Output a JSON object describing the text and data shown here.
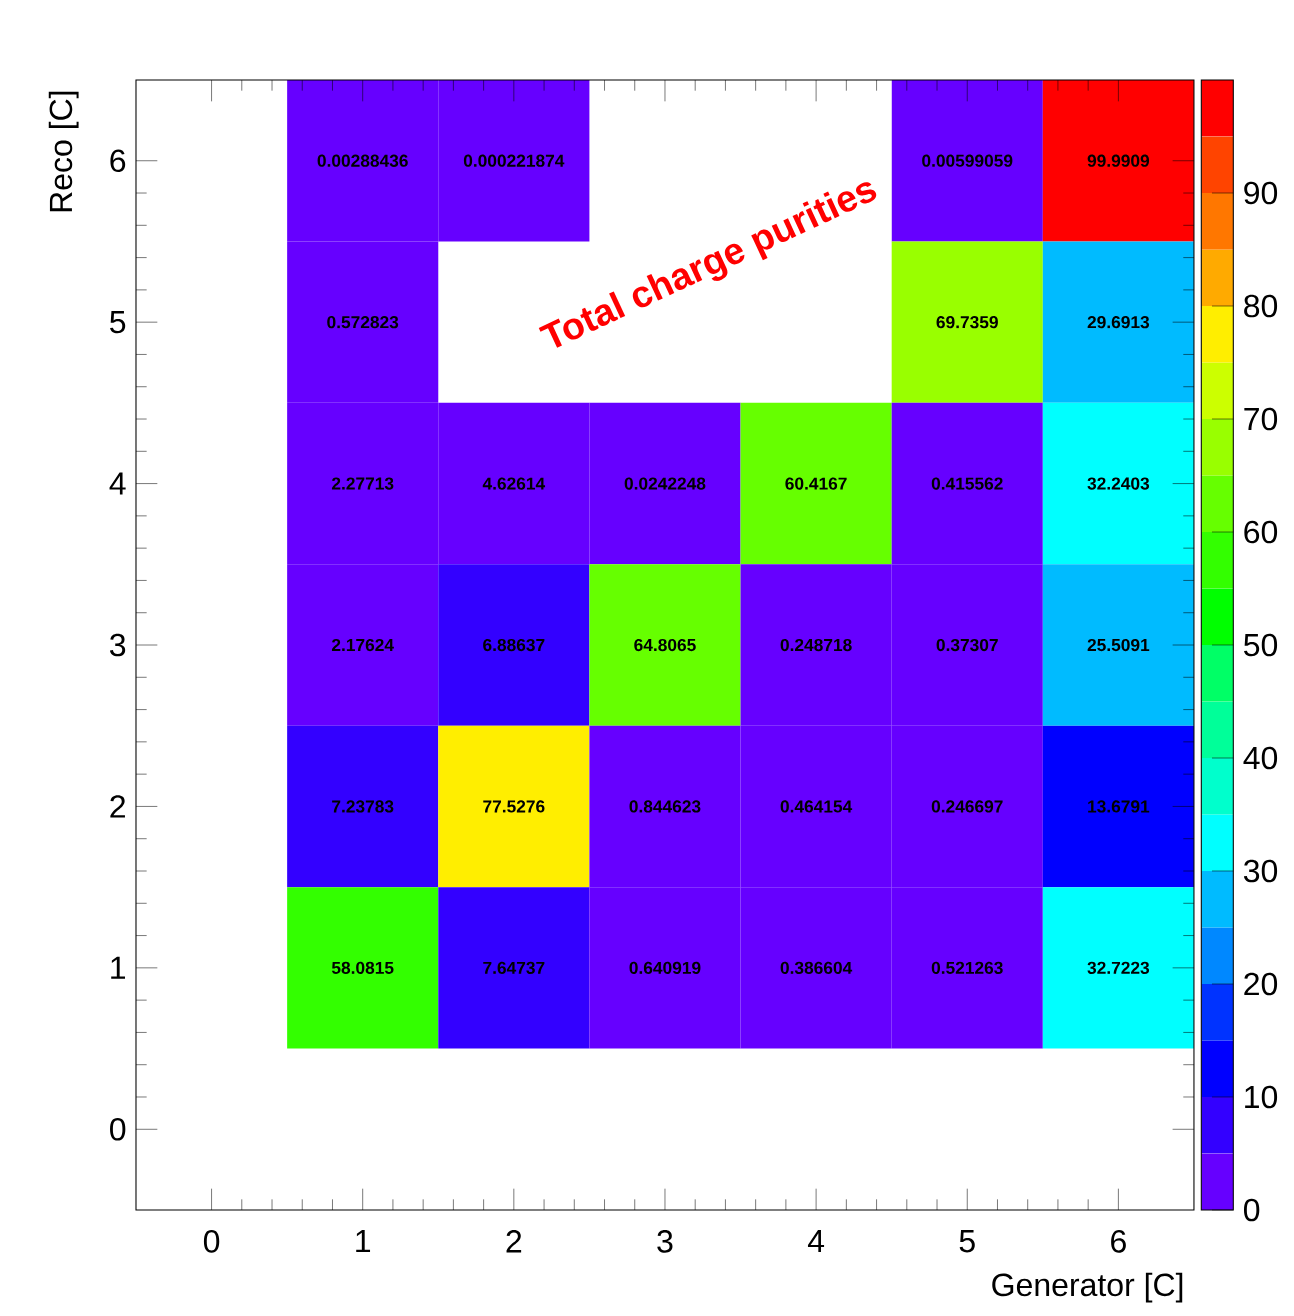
{
  "chart_data": {
    "type": "heatmap",
    "xlabel": "Generator [C]",
    "ylabel": "Reco [C]",
    "categories": [
      "0",
      "1",
      "2",
      "3",
      "4",
      "5",
      "6"
    ],
    "y_categories": [
      "6",
      "5",
      "4",
      "3",
      "2",
      "1",
      "0"
    ],
    "cells": [
      [
        null,
        0.00288436,
        0.000221874,
        null,
        null,
        0.00599059,
        99.9909
      ],
      [
        null,
        0.572823,
        null,
        null,
        null,
        69.7359,
        29.6913
      ],
      [
        null,
        2.27713,
        4.62614,
        0.0242248,
        60.4167,
        0.415562,
        32.2403
      ],
      [
        null,
        2.17624,
        6.88637,
        64.8065,
        0.248718,
        0.37307,
        25.5091
      ],
      [
        null,
        7.23783,
        77.5276,
        0.844623,
        0.464154,
        0.246697,
        13.6791
      ],
      [
        null,
        58.0815,
        7.64737,
        0.640919,
        0.386604,
        0.521263,
        32.7223
      ],
      [
        null,
        null,
        null,
        null,
        null,
        null,
        null
      ]
    ],
    "data_labels": true,
    "clim": [
      0,
      100
    ],
    "cticks": [
      0,
      10,
      20,
      30,
      40,
      50,
      60,
      70,
      80,
      90
    ],
    "annotations": [
      "Total charge purities"
    ]
  }
}
